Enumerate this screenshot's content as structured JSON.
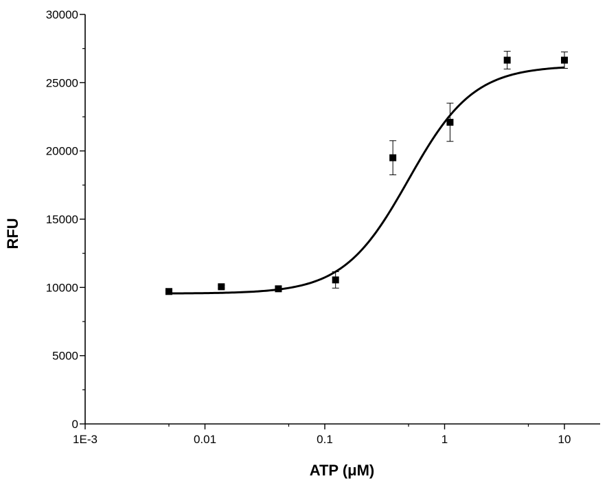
{
  "chart_data": {
    "type": "scatter",
    "title": "",
    "xlabel": "ATP (μM)",
    "ylabel": "RFU",
    "x_scale": "log",
    "xlim": [
      0.001,
      20
    ],
    "ylim": [
      0,
      30000
    ],
    "grid": false,
    "legend": "none",
    "x_ticks": [
      0.001,
      0.01,
      0.1,
      1,
      10
    ],
    "x_tick_labels": [
      "1E-3",
      "0.01",
      "0.1",
      "1",
      "10"
    ],
    "y_ticks": [
      0,
      5000,
      10000,
      15000,
      20000,
      25000,
      30000
    ],
    "y_tick_labels": [
      "0",
      "5000",
      "10000",
      "15000",
      "20000",
      "25000",
      "30000"
    ],
    "series": [
      {
        "x": [
          0.005,
          0.0137,
          0.041,
          0.123,
          0.37,
          1.11,
          3.33,
          10
        ],
        "y": [
          9700,
          10050,
          9900,
          10550,
          19500,
          22100,
          26650,
          26650
        ],
        "error": [
          100,
          100,
          150,
          600,
          1250,
          1400,
          650,
          600
        ],
        "marker": "square",
        "color": "#000000"
      }
    ],
    "fit_curve": {
      "model": "four-parameter logistic",
      "bottom": 9550,
      "top": 26250,
      "ec50": 0.5,
      "hill": 1.6,
      "x_range": [
        0.005,
        10
      ],
      "color": "#000000"
    }
  }
}
